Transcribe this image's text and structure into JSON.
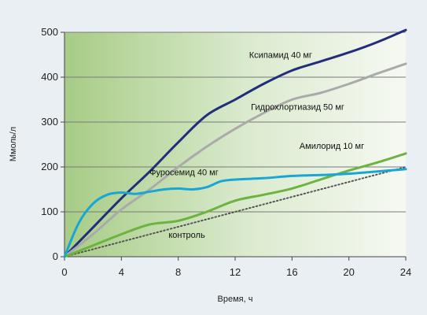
{
  "chart_data": {
    "type": "line",
    "xlabel": "Время, ч",
    "ylabel": "Ммоль/л",
    "xlim": [
      0,
      24
    ],
    "ylim": [
      0,
      500
    ],
    "x_ticks": [
      0,
      4,
      8,
      12,
      16,
      20,
      24
    ],
    "y_ticks": [
      0,
      100,
      200,
      300,
      400,
      500
    ],
    "grid": "horizontal",
    "series": [
      {
        "name": "Ксипамид 40 мг",
        "color": "#232e7a",
        "style": "solid",
        "x": [
          0,
          2,
          4,
          6,
          8,
          10,
          12,
          14,
          16,
          18,
          20,
          22,
          24
        ],
        "y": [
          0,
          65,
          130,
          190,
          255,
          315,
          350,
          385,
          415,
          435,
          455,
          478,
          505
        ]
      },
      {
        "name": "Гидрохлортиазид 50 мг",
        "color": "#aaaaaa",
        "style": "solid",
        "x": [
          0,
          2,
          4,
          6,
          8,
          10,
          12,
          14,
          16,
          18,
          20,
          22,
          24
        ],
        "y": [
          0,
          50,
          105,
          150,
          200,
          245,
          285,
          320,
          350,
          365,
          385,
          408,
          430
        ]
      },
      {
        "name": "Амилорид 10 мг",
        "color": "#6db33f",
        "style": "solid",
        "x": [
          0,
          2,
          4,
          6,
          8,
          10,
          12,
          14,
          16,
          18,
          20,
          22,
          24
        ],
        "y": [
          0,
          25,
          50,
          72,
          80,
          100,
          125,
          138,
          152,
          172,
          192,
          210,
          230
        ]
      },
      {
        "name": "Фуросемид 40 мг",
        "color": "#1aa6d4",
        "style": "solid",
        "x": [
          0,
          1,
          2,
          3,
          4,
          5,
          6,
          7,
          8,
          9,
          10,
          11,
          12,
          14,
          16,
          18,
          20,
          22,
          24
        ],
        "y": [
          0,
          75,
          118,
          138,
          143,
          140,
          145,
          150,
          152,
          150,
          155,
          168,
          172,
          175,
          180,
          182,
          185,
          190,
          195
        ]
      },
      {
        "name": "контроль",
        "color": "#555555",
        "style": "dotted",
        "x": [
          0,
          24
        ],
        "y": [
          0,
          200
        ]
      }
    ],
    "annotations": [
      {
        "series": 0,
        "text": "Ксипамид 40 мг",
        "x": 15.2,
        "y": 443
      },
      {
        "series": 1,
        "text": "Гидрохлортиазид 50 мг",
        "x": 16.4,
        "y": 327
      },
      {
        "series": 2,
        "text": "Амилорид 10 мг",
        "x": 18.8,
        "y": 240
      },
      {
        "series": 3,
        "text": "Фуросемид 40 мг",
        "x": 8.4,
        "y": 182
      },
      {
        "series": 4,
        "text": "контроль",
        "x": 8.6,
        "y": 42
      }
    ]
  }
}
